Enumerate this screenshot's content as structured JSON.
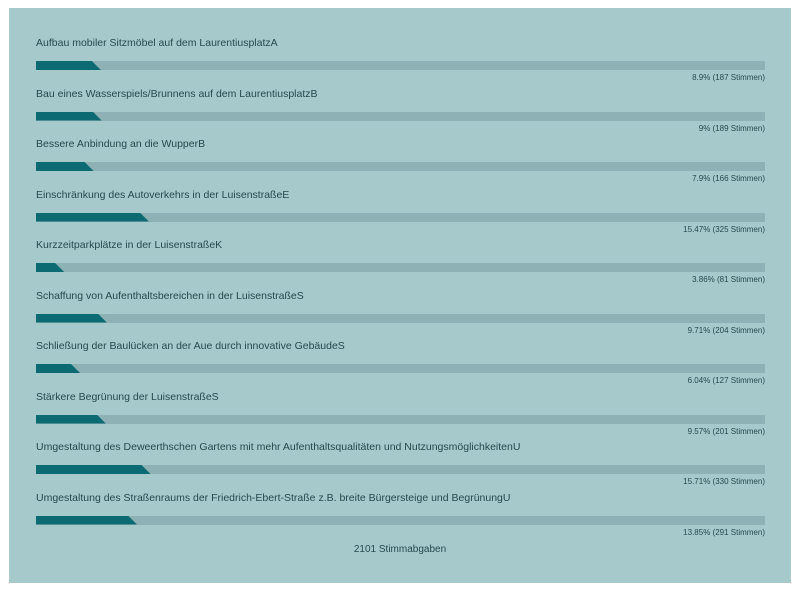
{
  "chart_data": {
    "type": "bar",
    "orientation": "horizontal",
    "xlim": [
      0,
      100
    ],
    "total_label": "2101 Stimmabgaben",
    "items": [
      {
        "label": "Aufbau mobiler Sitzmöbel auf dem LaurentiusplatzA",
        "percent": 8.9,
        "stat": "8.9% (187 Stimmen)"
      },
      {
        "label": "Bau eines Wasserspiels/Brunnens auf dem LaurentiusplatzB",
        "percent": 9,
        "stat": "9% (189 Stimmen)"
      },
      {
        "label": "Bessere Anbindung an die WupperB",
        "percent": 7.9,
        "stat": "7.9% (166 Stimmen)"
      },
      {
        "label": "Einschränkung des Autoverkehrs in der LuisenstraßeE",
        "percent": 15.47,
        "stat": "15.47% (325 Stimmen)"
      },
      {
        "label": "Kurzzeitparkplätze in der LuisenstraßeK",
        "percent": 3.86,
        "stat": "3.86% (81 Stimmen)"
      },
      {
        "label": "Schaffung von Aufenthaltsbereichen in der LuisenstraßeS",
        "percent": 9.71,
        "stat": "9.71% (204 Stimmen)"
      },
      {
        "label": "Schließung der Baulücken an der Aue durch innovative GebäudeS",
        "percent": 6.04,
        "stat": "6.04% (127 Stimmen)"
      },
      {
        "label": "Stärkere Begrünung der LuisenstraßeS",
        "percent": 9.57,
        "stat": "9.57% (201 Stimmen)"
      },
      {
        "label": "Umgestaltung des Deweerthschen Gartens mit mehr Aufenthaltsqualitäten und NutzungsmöglichkeitenU",
        "percent": 15.71,
        "stat": "15.71% (330 Stimmen)"
      },
      {
        "label": "Umgestaltung des Straßenraums der Friedrich-Ebert-Straße z.B. breite Bürgersteige und BegrünungU",
        "percent": 13.85,
        "stat": "13.85% (291 Stimmen)"
      }
    ]
  },
  "colors": {
    "panel_background": "#a6c9cc",
    "bar_track": "#8eb1b5",
    "bar_fill": "#0c6b72",
    "text": "#264a4d"
  }
}
